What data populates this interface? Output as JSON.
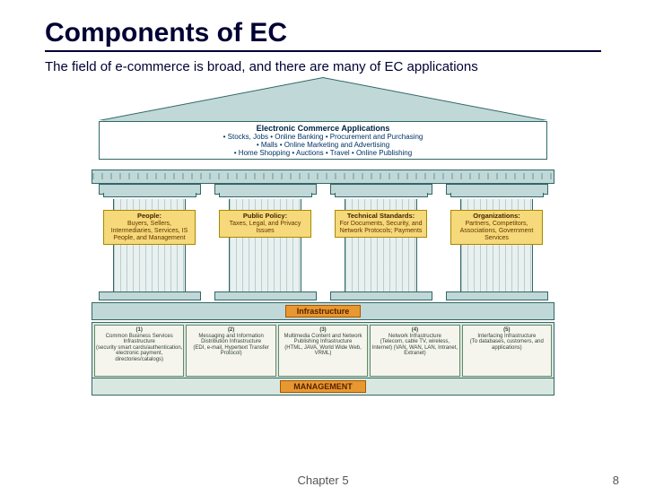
{
  "title": "Components of EC",
  "subtitle": "The field of e-commerce is broad, and there are many of EC applications",
  "footer": {
    "chapter": "Chapter 5",
    "page": "8"
  },
  "colors": {
    "title": "#000033",
    "roof_fill": "#c0d8d8",
    "roof_border": "#336666",
    "plaque_fill": "#f5d97a",
    "plaque_border": "#aa8800",
    "infra_fill": "#e89830",
    "foundation_fill": "#d8e8e0"
  },
  "banner": {
    "heading": "Electronic Commerce Applications",
    "line1": "• Stocks, Jobs • Online Banking • Procurement and Purchasing",
    "line2": "• Malls • Online Marketing and Advertising",
    "line3": "• Home Shopping • Auctions • Travel • Online Publishing"
  },
  "pillars": [
    {
      "head": "People:",
      "body": "Buyers, Sellers, Intermediaries, Services, IS People, and Management"
    },
    {
      "head": "Public Policy:",
      "body": "Taxes, Legal, and Privacy Issues"
    },
    {
      "head": "Technical Standards:",
      "body": "For Documents, Security, and Network Protocols; Payments"
    },
    {
      "head": "Organizations:",
      "body": "Partners, Competitors, Associations, Government Services"
    }
  ],
  "infrastructure_label": "Infrastructure",
  "foundation": [
    {
      "n": "(1)",
      "t": "Common Business Services Infrastructure",
      "d": "(security smart cards/authentication, electronic payment, directories/catalogs)"
    },
    {
      "n": "(2)",
      "t": "Messaging and Information Distribution Infrastructure",
      "d": "(EDI, e-mail, Hypertext Transfer Protocol)"
    },
    {
      "n": "(3)",
      "t": "Multimedia Content and Network Publishing Infrastructure",
      "d": "(HTML, JAVA, World Wide Web, VRML)"
    },
    {
      "n": "(4)",
      "t": "Network Infrastructure",
      "d": "(Telecom, cable TV, wireless, Internet) (VAN, WAN, LAN, Intranet, Extranet)"
    },
    {
      "n": "(5)",
      "t": "Interfacing Infrastructure",
      "d": "(To databases, customers, and applications)"
    }
  ],
  "management_label": "MANAGEMENT"
}
